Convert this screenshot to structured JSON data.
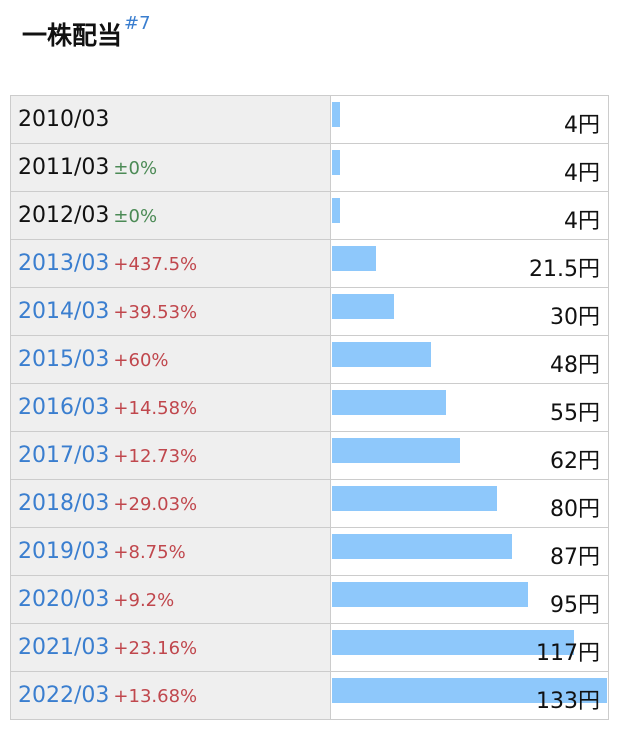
{
  "title": "一株配当",
  "title_ref": "#7",
  "rows": [
    {
      "year": "2010/03",
      "change": null,
      "value": 4,
      "value_label": "4円",
      "link": false
    },
    {
      "year": "2011/03",
      "change": "±0%",
      "value": 4,
      "value_label": "4円",
      "link": false
    },
    {
      "year": "2012/03",
      "change": "±0%",
      "value": 4,
      "value_label": "4円",
      "link": false
    },
    {
      "year": "2013/03",
      "change": "+437.5%",
      "value": 21.5,
      "value_label": "21.5円",
      "link": true
    },
    {
      "year": "2014/03",
      "change": "+39.53%",
      "value": 30,
      "value_label": "30円",
      "link": true
    },
    {
      "year": "2015/03",
      "change": "+60%",
      "value": 48,
      "value_label": "48円",
      "link": true
    },
    {
      "year": "2016/03",
      "change": "+14.58%",
      "value": 55,
      "value_label": "55円",
      "link": true
    },
    {
      "year": "2017/03",
      "change": "+12.73%",
      "value": 62,
      "value_label": "62円",
      "link": true
    },
    {
      "year": "2018/03",
      "change": "+29.03%",
      "value": 80,
      "value_label": "80円",
      "link": true
    },
    {
      "year": "2019/03",
      "change": "+8.75%",
      "value": 87,
      "value_label": "87円",
      "link": true
    },
    {
      "year": "2020/03",
      "change": "+9.2%",
      "value": 95,
      "value_label": "95円",
      "link": true
    },
    {
      "year": "2021/03",
      "change": "+23.16%",
      "value": 117,
      "value_label": "117円",
      "link": true
    },
    {
      "year": "2022/03",
      "change": "+13.68%",
      "value": 133,
      "value_label": "133円",
      "link": true
    }
  ]
}
